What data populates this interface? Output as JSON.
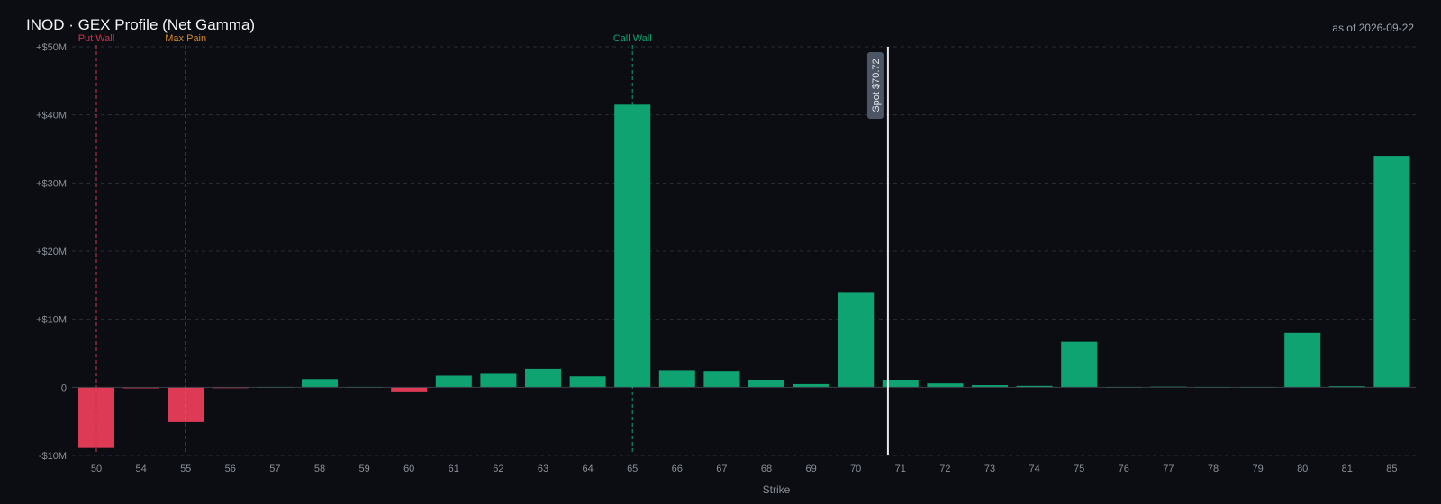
{
  "header": {
    "title": "INOD · GEX Profile (Net Gamma)",
    "as_of": "as of 2026-09-22"
  },
  "colors": {
    "background": "#0b0d12",
    "positive": "#10a372",
    "negative": "#dc3a55",
    "put_wall": "#c8364f",
    "max_pain": "#d2892a",
    "call_wall": "#10a372",
    "spot": "#e5e7eb",
    "grid": "#2a2f36",
    "tick_text": "#8b9099"
  },
  "chart_data": {
    "type": "bar",
    "title": "INOD · GEX Profile (Net Gamma)",
    "xlabel": "Strike",
    "ylabel": "",
    "ylim": [
      -10,
      50
    ],
    "y_unit": "$M",
    "y_ticks": [
      {
        "value": 50,
        "label": "+$50M"
      },
      {
        "value": 40,
        "label": "+$40M"
      },
      {
        "value": 30,
        "label": "+$30M"
      },
      {
        "value": 20,
        "label": "+$20M"
      },
      {
        "value": 10,
        "label": "+$10M"
      },
      {
        "value": 0,
        "label": "0"
      },
      {
        "value": -10,
        "label": "-$10M"
      }
    ],
    "grid": true,
    "categories": [
      "50",
      "54",
      "55",
      "56",
      "57",
      "58",
      "59",
      "60",
      "61",
      "62",
      "63",
      "64",
      "65",
      "66",
      "67",
      "68",
      "69",
      "70",
      "71",
      "72",
      "73",
      "74",
      "75",
      "76",
      "77",
      "78",
      "79",
      "80",
      "81",
      "85"
    ],
    "values": [
      -8.9,
      -0.15,
      -5.1,
      -0.05,
      0.05,
      1.2,
      0.05,
      -0.6,
      1.7,
      2.1,
      2.7,
      1.6,
      41.5,
      2.5,
      2.4,
      1.1,
      0.45,
      14.0,
      1.1,
      0.55,
      0.3,
      0.2,
      6.7,
      0.05,
      0.1,
      0.05,
      0.05,
      8.0,
      0.15,
      34.0
    ],
    "markers": [
      {
        "label": "Put Wall",
        "strike": "50",
        "color": "#c8364f"
      },
      {
        "label": "Max Pain",
        "strike": "55",
        "color": "#d2892a"
      },
      {
        "label": "Call Wall",
        "strike": "65",
        "color": "#10a372"
      }
    ],
    "spot": {
      "label": "Spot $70.72",
      "value": 70.72
    }
  }
}
